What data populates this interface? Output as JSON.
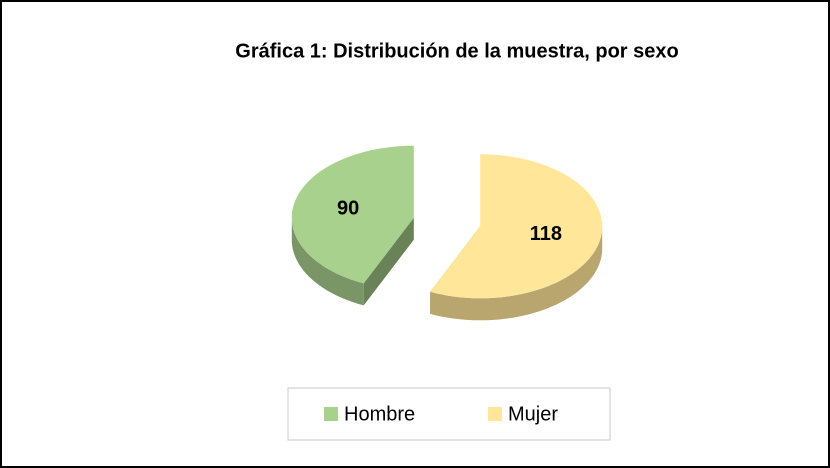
{
  "chart_data": {
    "type": "pie",
    "title": "Gráfica 1: Distribución de la muestra, por sexo",
    "categories": [
      "Hombre",
      "Mujer"
    ],
    "values": [
      90,
      118
    ],
    "colors": [
      "#a9d18e",
      "#ffe699"
    ],
    "legend": "bottom"
  }
}
